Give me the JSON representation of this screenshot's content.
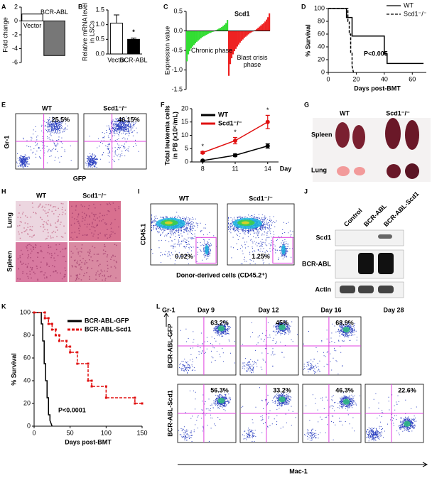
{
  "panels": {
    "a": {
      "letter": "A",
      "type": "bar",
      "ylabel": "Fold change",
      "categories": [
        "Vector",
        "BCR-ABL"
      ],
      "values": [
        1,
        -5
      ],
      "colors": [
        "#ffffff",
        "#777777"
      ],
      "ylim": [
        -6,
        2
      ],
      "yticks": [
        -6,
        -4,
        -2,
        0,
        2
      ]
    },
    "b": {
      "letter": "B",
      "type": "bar",
      "ylabel_lines": [
        "Relative mRNA level",
        "in LSCs"
      ],
      "categories": [
        "Vector",
        "BCR-ABL"
      ],
      "values": [
        1.05,
        0.5
      ],
      "errors": [
        0.28,
        0.04
      ],
      "colors": [
        "#ffffff",
        "#000000"
      ],
      "ylim": [
        0,
        1.5
      ],
      "yticks": [
        {
          "value": 0,
          "label": "0.0"
        },
        0.5,
        {
          "value": 1,
          "label": "1.0"
        },
        1.5
      ],
      "annotation": "*"
    },
    "c": {
      "letter": "C",
      "type": "waterfall",
      "title": "Scd1",
      "ylabel": "Expression value",
      "ylim": [
        -1.5,
        0.5
      ],
      "yticks": [
        -1.5,
        {
          "value": -1,
          "label": "-1.0"
        },
        -0.5,
        {
          "value": 0,
          "label": "0.0"
        },
        0.5
      ],
      "series": [
        {
          "name": "Chronic phase",
          "color": "#33dd33",
          "values": [
            -0.78,
            -0.6,
            -0.52,
            -0.45,
            -0.4,
            -0.36,
            -0.32,
            -0.28,
            -0.25,
            -0.22,
            -0.19,
            -0.16,
            -0.14,
            -0.12,
            -0.1,
            -0.08,
            -0.06,
            -0.05,
            -0.03,
            -0.02,
            0,
            0.02,
            0.04,
            0.06,
            0.08,
            0.1,
            0.13,
            0.16,
            0.2,
            0.28
          ]
        },
        {
          "name": "Blast crisis phase",
          "color": "#ee2222",
          "values": [
            -1.15,
            -0.85,
            -0.7,
            -0.6,
            -0.52,
            -0.46,
            -0.4,
            -0.35,
            -0.3,
            -0.26,
            -0.22,
            -0.18,
            -0.15,
            -0.12,
            -0.09,
            -0.06,
            -0.04,
            -0.02,
            0,
            0.02,
            0.05,
            0.08,
            0.11,
            0.14,
            0.17,
            0.2,
            0.24,
            0.29,
            0.35,
            0.45
          ]
        }
      ]
    },
    "d": {
      "letter": "D",
      "type": "line",
      "ylabel": "% Survival",
      "xlabel": "Days post-BMT",
      "annotation": "P<0.005",
      "legend": "top-right",
      "xlim": [
        0,
        70
      ],
      "xticks": [
        0,
        20,
        40,
        60
      ],
      "ylim": [
        0,
        100
      ],
      "yticks": [
        0,
        20,
        40,
        60,
        80,
        100
      ],
      "series": [
        {
          "name": "WT",
          "color": "#000000",
          "dash": false,
          "x": [
            0,
            13,
            13,
            17,
            17,
            40,
            40,
            42,
            42,
            68
          ],
          "values": [
            100,
            100,
            86,
            86,
            57,
            57,
            29,
            29,
            14,
            14
          ]
        },
        {
          "name": "Scd1⁻/⁻",
          "color": "#000000",
          "dash": true,
          "x": [
            0,
            14,
            14,
            15,
            15,
            16,
            16,
            17,
            17,
            18
          ],
          "values": [
            100,
            100,
            80,
            80,
            60,
            60,
            30,
            30,
            10,
            0
          ]
        }
      ]
    },
    "e": {
      "letter": "E",
      "type": "flow",
      "ylabel": "Gr-1",
      "xlabel": "GFP",
      "plots": [
        {
          "title": "WT",
          "percent": "25.5%"
        },
        {
          "title": "Scd1⁻/⁻",
          "percent": "46.15%"
        }
      ]
    },
    "f": {
      "letter": "F",
      "type": "line",
      "ylabel_lines": [
        "Total leukemia cells",
        "in PB (x10⁶/mL)"
      ],
      "xlabel": "Day",
      "x": [
        8,
        11,
        14
      ],
      "xlim": [
        7,
        15
      ],
      "xticks": [
        8,
        11,
        14
      ],
      "ylim": [
        0,
        20
      ],
      "yticks": [
        0,
        5,
        10,
        15,
        20
      ],
      "annotations": [
        "*",
        "*",
        "*"
      ],
      "series": [
        {
          "name": "WT",
          "color": "#000000",
          "values": [
            0.5,
            2.5,
            6
          ],
          "errors": [
            0.2,
            0.5,
            0.8
          ]
        },
        {
          "name": "Scd1⁻/⁻",
          "color": "#e01010",
          "values": [
            3.5,
            8,
            15
          ],
          "errors": [
            0.4,
            1.2,
            2.5
          ]
        }
      ]
    },
    "g": {
      "letter": "G",
      "type": "photo",
      "columns": [
        "WT",
        "Scd1⁻/⁻"
      ],
      "rows": [
        "Spleen",
        "Lung"
      ]
    },
    "h": {
      "letter": "H",
      "type": "histology",
      "columns": [
        "WT",
        "Scd1⁻/⁻"
      ],
      "rows": [
        "Lung",
        "Spleen"
      ]
    },
    "i": {
      "letter": "I",
      "type": "flow",
      "ylabel": "CD45.1",
      "xlabel": "Donor-derived cells (CD45.2⁺)",
      "plots": [
        {
          "title": "WT",
          "percent": "0.92%"
        },
        {
          "title": "Scd1⁻/⁻",
          "percent": "1.25%"
        }
      ]
    },
    "j": {
      "letter": "J",
      "type": "blot",
      "lanes": [
        "Control",
        "BCR-ABL",
        "BCR-ABL-Scd1"
      ],
      "rows": [
        "Scd1",
        "BCR-ABL",
        "Actin"
      ]
    },
    "k": {
      "letter": "K",
      "type": "line",
      "ylabel": "% Survival",
      "xlabel": "Days post-BMT",
      "annotation": "P<0.0001",
      "legend": "top-right",
      "xlim": [
        0,
        150
      ],
      "xticks": [
        0,
        50,
        100,
        150
      ],
      "ylim": [
        0,
        100
      ],
      "yticks": [
        0,
        20,
        40,
        60,
        80,
        100
      ],
      "series": [
        {
          "name": "BCR-ABL-GFP",
          "color": "#000000",
          "dash": false,
          "x": [
            0,
            10,
            10,
            12,
            12,
            14,
            14,
            16,
            16,
            18,
            18,
            20,
            20,
            22,
            22,
            25
          ],
          "values": [
            100,
            100,
            90,
            90,
            75,
            75,
            55,
            55,
            40,
            40,
            25,
            25,
            10,
            10,
            5,
            0
          ]
        },
        {
          "name": "BCR-ABL-Scd1",
          "color": "#e01010",
          "dash": true,
          "x": [
            0,
            15,
            15,
            20,
            20,
            25,
            25,
            30,
            30,
            35,
            35,
            45,
            45,
            50,
            50,
            60,
            60,
            75,
            75,
            80,
            80,
            100,
            100,
            140,
            140,
            150
          ],
          "values": [
            100,
            100,
            95,
            95,
            90,
            90,
            85,
            85,
            80,
            80,
            75,
            75,
            70,
            70,
            65,
            65,
            55,
            55,
            40,
            40,
            35,
            35,
            25,
            25,
            20,
            20
          ]
        }
      ]
    },
    "l": {
      "letter": "L",
      "type": "flow-grid",
      "ylabel": "Gr-1",
      "xlabel": "Mac-1",
      "columns": [
        "Day 9",
        "Day 12",
        "Day 16",
        "Day 28"
      ],
      "rows": [
        {
          "name": "BCR-ABL-GFP",
          "percents": [
            "63.2%",
            "45%",
            "68.9%",
            null
          ]
        },
        {
          "name": "BCR-ABL-Scd1",
          "percents": [
            "56.3%",
            "33.2%",
            "46.3%",
            "22.6%"
          ]
        }
      ]
    }
  }
}
